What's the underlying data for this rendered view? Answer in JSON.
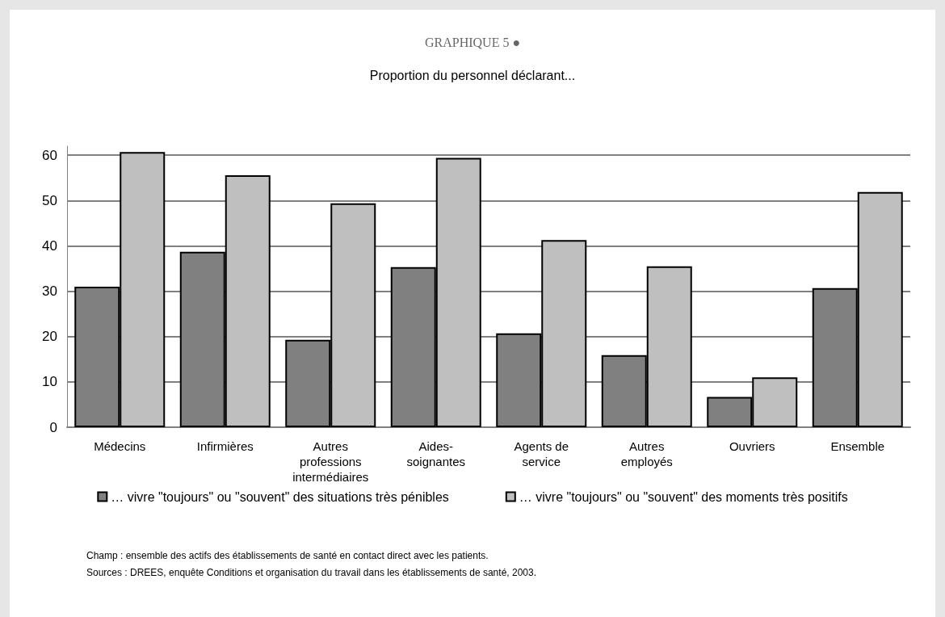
{
  "chart_data": {
    "type": "bar",
    "title": "GRAPHIQUE 5 ●",
    "subtitle": "Proportion du personnel déclarant...",
    "categories": [
      "Médecins",
      "Infirmières",
      "Autres\nprofessions\nintermédiaires",
      "Aides-\nsoignantes",
      "Agents de\nservice",
      "Autres\nemployés",
      "Ouvriers",
      "Ensemble"
    ],
    "series": [
      {
        "name": "… vivre \"toujours\" ou \"souvent\" des situations très pénibles",
        "color": "#808080",
        "values": [
          31.0,
          38.7,
          19.3,
          35.3,
          20.7,
          15.9,
          6.7,
          30.7
        ]
      },
      {
        "name": "… vivre \"toujours\" ou \"souvent\" des moments très positifs",
        "color": "#bfbfbf",
        "values": [
          60.7,
          55.6,
          49.4,
          59.4,
          41.3,
          35.5,
          11.0,
          51.9
        ]
      }
    ],
    "ylim": [
      0,
      62
    ],
    "yticks": [
      0,
      10,
      20,
      30,
      40,
      50,
      60
    ],
    "grid": "y",
    "legend": "bottom",
    "annotations": [
      "Champ : ensemble des actifs des établissements de santé en contact direct avec les patients.",
      "Sources : DREES, enquête Conditions et organisation du travail dans les établissements de santé, 2003."
    ]
  }
}
